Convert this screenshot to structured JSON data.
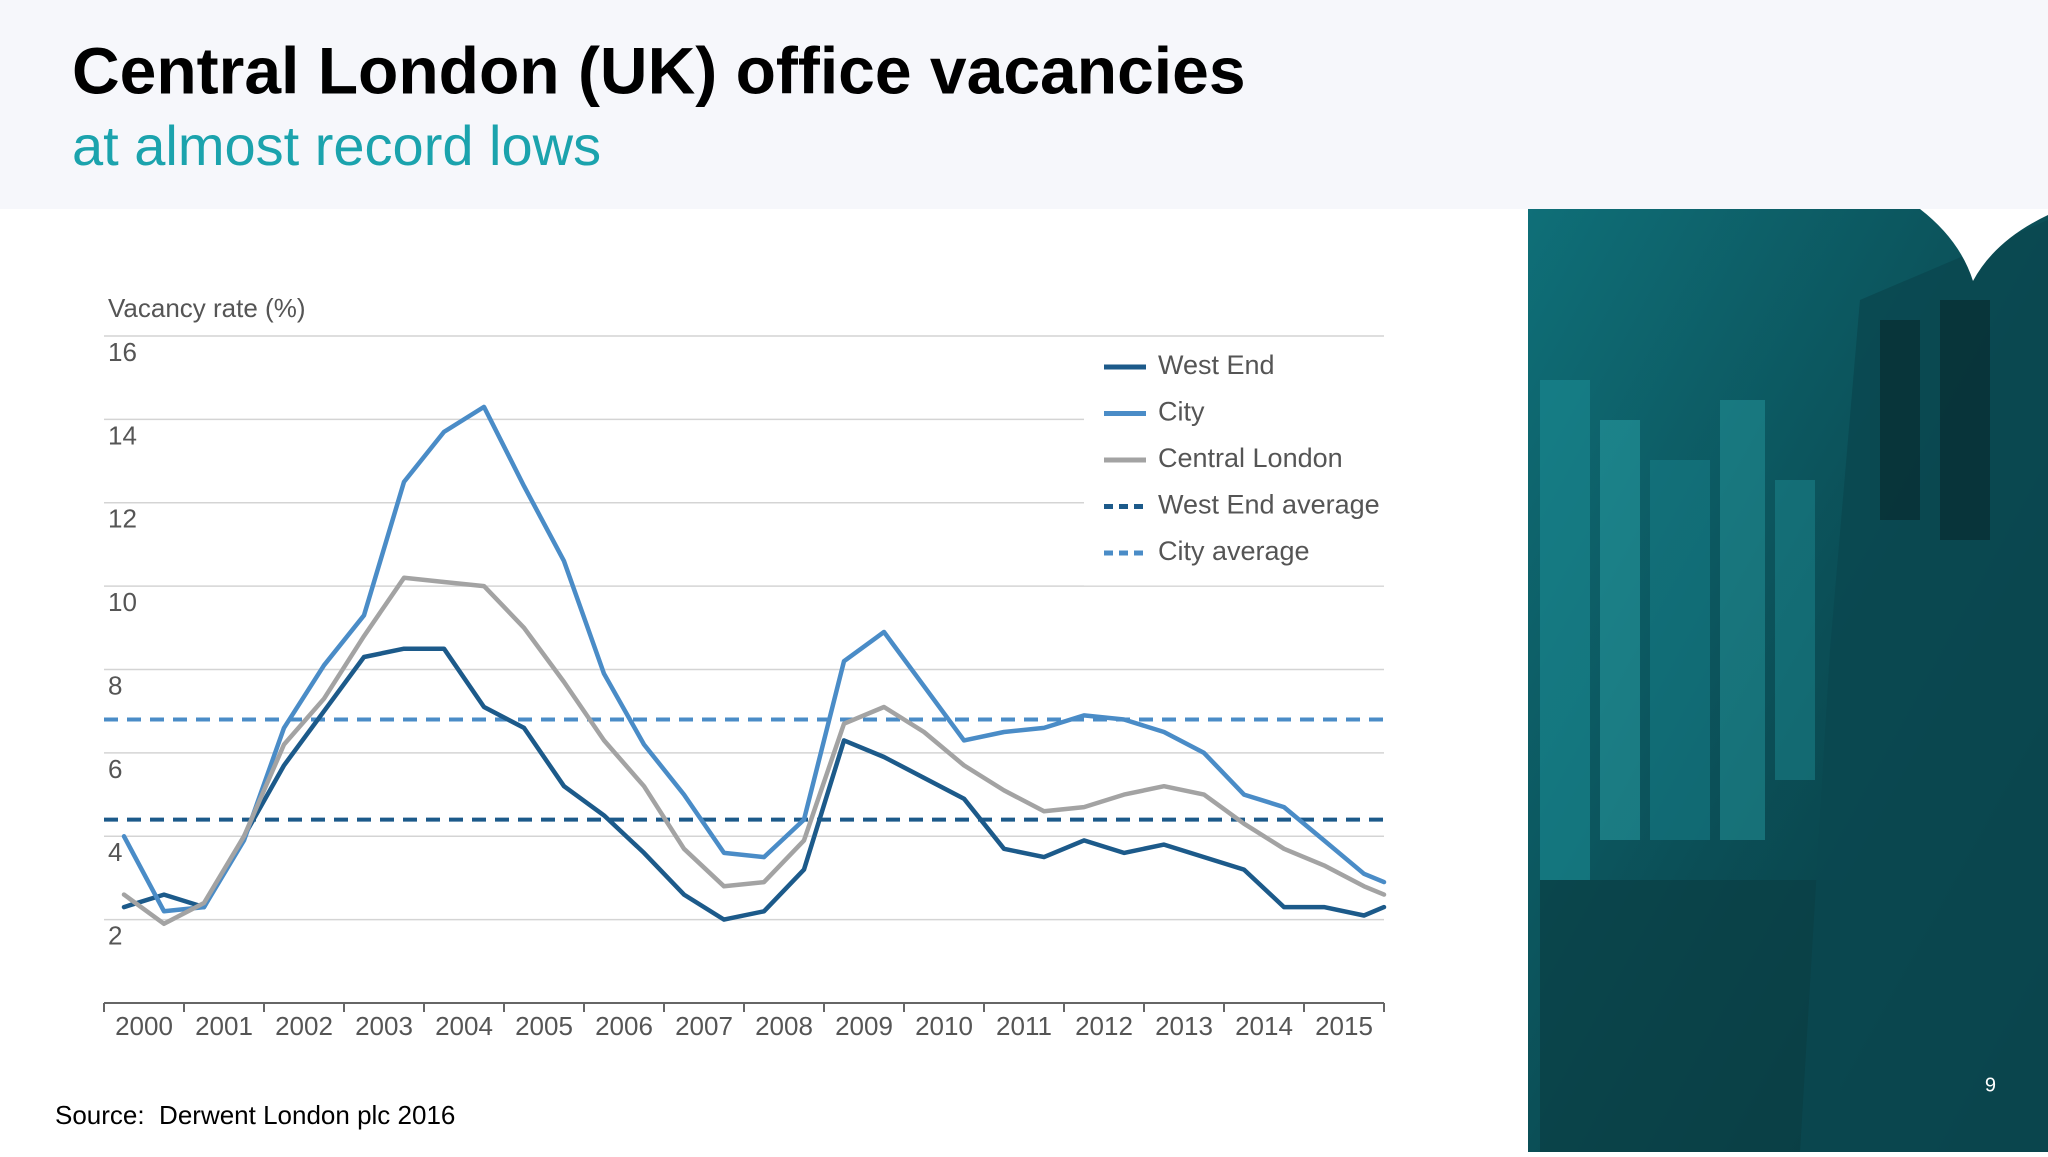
{
  "header": {
    "title": "Central London (UK) office vacancies",
    "subtitle": "at almost record lows"
  },
  "chart_data": {
    "type": "line",
    "y_label": "Vacancy rate (%)",
    "x": [
      2000.25,
      2000.75,
      2001.25,
      2001.75,
      2002.25,
      2002.75,
      2003.25,
      2003.75,
      2004.25,
      2004.75,
      2005.25,
      2005.75,
      2006.25,
      2006.75,
      2007.25,
      2007.75,
      2008.25,
      2008.75,
      2009.25,
      2009.75,
      2010.25,
      2010.75,
      2011.25,
      2011.75,
      2012.25,
      2012.75,
      2013.25,
      2013.75,
      2014.25,
      2014.75,
      2015.25,
      2015.75,
      2016
    ],
    "series": [
      {
        "name": "West End",
        "color": "#1c5a8a",
        "values": [
          2.3,
          2.6,
          2.3,
          4.0,
          5.7,
          7.0,
          8.3,
          8.5,
          8.5,
          7.1,
          6.6,
          5.2,
          4.5,
          3.6,
          2.6,
          2.0,
          2.2,
          3.2,
          6.3,
          5.9,
          5.4,
          4.9,
          3.7,
          3.5,
          3.9,
          3.6,
          3.8,
          3.5,
          3.2,
          2.3,
          2.3,
          2.1,
          2.3
        ]
      },
      {
        "name": "City",
        "color": "#4a8cc7",
        "values": [
          4.0,
          2.2,
          2.3,
          3.9,
          6.6,
          8.1,
          9.3,
          12.5,
          13.7,
          14.3,
          12.4,
          10.6,
          7.9,
          6.2,
          5.0,
          3.6,
          3.5,
          4.4,
          8.2,
          8.9,
          7.6,
          6.3,
          6.5,
          6.6,
          6.9,
          6.8,
          6.5,
          6.0,
          5.0,
          4.7,
          3.9,
          3.1,
          2.9
        ]
      },
      {
        "name": "Central London",
        "color": "#a3a3a3",
        "values": [
          2.6,
          1.9,
          2.4,
          4.0,
          6.2,
          7.3,
          8.8,
          10.2,
          10.1,
          10.0,
          9.0,
          7.7,
          6.3,
          5.2,
          3.7,
          2.8,
          2.9,
          3.9,
          6.7,
          7.1,
          6.5,
          5.7,
          5.1,
          4.6,
          4.7,
          5.0,
          5.2,
          5.0,
          4.3,
          3.7,
          3.3,
          2.8,
          2.6
        ]
      }
    ],
    "reference_lines": [
      {
        "name": "West End average",
        "color": "#1c5a8a",
        "value": 4.4,
        "style": "dashed"
      },
      {
        "name": "City average",
        "color": "#4a8cc7",
        "value": 6.8,
        "style": "dashed"
      }
    ],
    "xlim": [
      2000,
      2016
    ],
    "xticks": [
      2000,
      2001,
      2002,
      2003,
      2004,
      2005,
      2006,
      2007,
      2008,
      2009,
      2010,
      2011,
      2012,
      2013,
      2014,
      2015
    ],
    "ylim": [
      0,
      16
    ],
    "yticks": [
      2,
      4,
      6,
      8,
      10,
      12,
      14,
      16
    ],
    "grid": true,
    "legend": "upper right"
  },
  "footer": {
    "source": "Source:  Derwent London plc 2016",
    "page_number": "9"
  }
}
